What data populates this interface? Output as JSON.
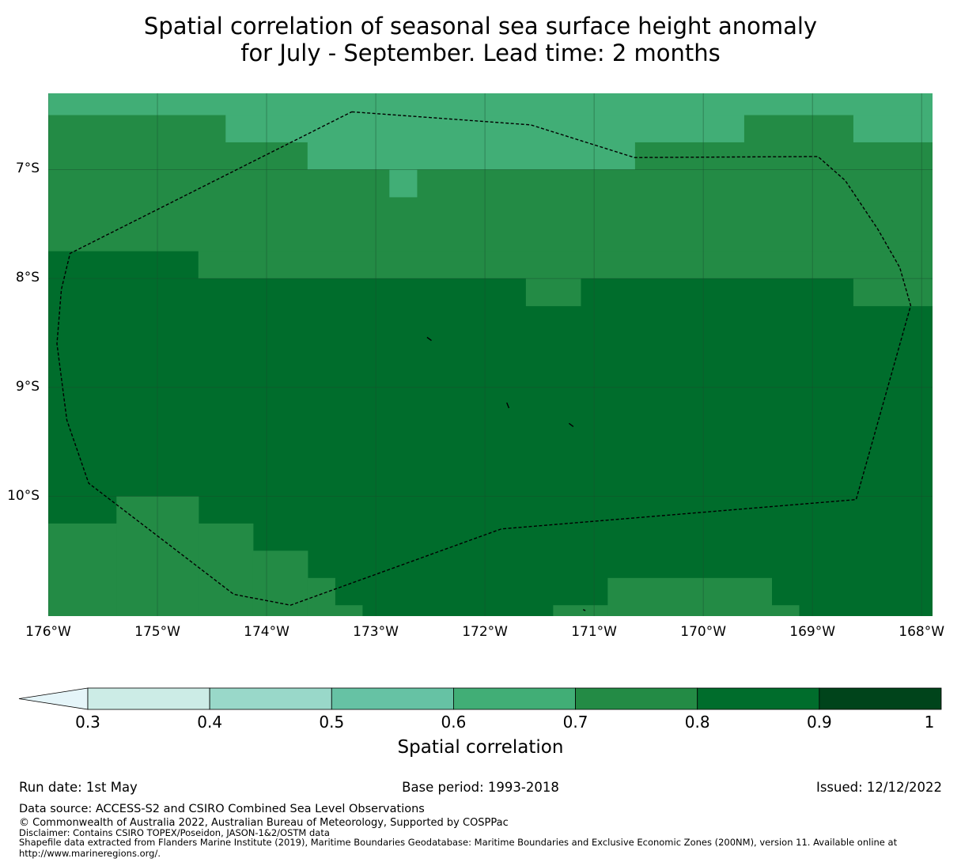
{
  "title": {
    "line1": "Spatial correlation of seasonal sea surface height anomaly",
    "line2": "for July - September. Lead time: 2 months"
  },
  "map": {
    "lon_range": [
      -176,
      -167.9
    ],
    "lat_range": [
      -11.1,
      -6.3
    ],
    "lat_ticks": [
      {
        "value": -7,
        "label": "7°S"
      },
      {
        "value": -8,
        "label": "8°S"
      },
      {
        "value": -9,
        "label": "9°S"
      },
      {
        "value": -10,
        "label": "10°S"
      }
    ],
    "lon_ticks": [
      {
        "value": -176,
        "label": "176°W"
      },
      {
        "value": -175,
        "label": "175°W"
      },
      {
        "value": -174,
        "label": "174°W"
      },
      {
        "value": -173,
        "label": "173°W"
      },
      {
        "value": -172,
        "label": "172°W"
      },
      {
        "value": -171,
        "label": "171°W"
      },
      {
        "value": -170,
        "label": "170°W"
      },
      {
        "value": -169,
        "label": "169°W"
      },
      {
        "value": -168,
        "label": "168°W"
      }
    ],
    "grid": true,
    "cells": [
      {
        "lon": [
          -176,
          -167.9
        ],
        "lat": [
          -6.3,
          -6.5
        ],
        "value": 0.65
      },
      {
        "lon": [
          -176,
          -174.375
        ],
        "lat": [
          -6.5,
          -6.75
        ],
        "value": 0.75
      },
      {
        "lon": [
          -174.375,
          -169.625
        ],
        "lat": [
          -6.5,
          -6.75
        ],
        "value": 0.65
      },
      {
        "lon": [
          -169.625,
          -168.625
        ],
        "lat": [
          -6.5,
          -6.75
        ],
        "value": 0.75
      },
      {
        "lon": [
          -168.625,
          -167.9
        ],
        "lat": [
          -6.5,
          -6.75
        ],
        "value": 0.65
      },
      {
        "lon": [
          -176,
          -173.625
        ],
        "lat": [
          -6.75,
          -7.0
        ],
        "value": 0.75
      },
      {
        "lon": [
          -173.625,
          -170.625
        ],
        "lat": [
          -6.75,
          -7.0
        ],
        "value": 0.65
      },
      {
        "lon": [
          -170.625,
          -167.9
        ],
        "lat": [
          -6.75,
          -7.0
        ],
        "value": 0.75
      },
      {
        "lon": [
          -176,
          -167.9
        ],
        "lat": [
          -7.0,
          -7.75
        ],
        "value": 0.75
      },
      {
        "lon": [
          -172.875,
          -172.625
        ],
        "lat": [
          -7.0,
          -7.25
        ],
        "value": 0.65
      },
      {
        "lon": [
          -176,
          -174.625
        ],
        "lat": [
          -7.75,
          -8.0
        ],
        "value": 0.85
      },
      {
        "lon": [
          -174.625,
          -167.9
        ],
        "lat": [
          -7.75,
          -8.0
        ],
        "value": 0.75
      },
      {
        "lon": [
          -176,
          -167.9
        ],
        "lat": [
          -8.0,
          -10.0
        ],
        "value": 0.85
      },
      {
        "lon": [
          -171.625,
          -171.125
        ],
        "lat": [
          -8.0,
          -8.25
        ],
        "value": 0.75
      },
      {
        "lon": [
          -168.625,
          -167.9
        ],
        "lat": [
          -8.0,
          -8.25
        ],
        "value": 0.75
      },
      {
        "lon": [
          -176,
          -167.9
        ],
        "lat": [
          -10.0,
          -11.1
        ],
        "value": 0.85
      },
      {
        "lon": [
          -176,
          -175.375
        ],
        "lat": [
          -10.25,
          -11.1
        ],
        "value": 0.75
      },
      {
        "lon": [
          -175.375,
          -174.625
        ],
        "lat": [
          -10.0,
          -11.1
        ],
        "value": 0.75
      },
      {
        "lon": [
          -174.625,
          -174.125
        ],
        "lat": [
          -10.25,
          -11.1
        ],
        "value": 0.75
      },
      {
        "lon": [
          -174.125,
          -173.625
        ],
        "lat": [
          -10.5,
          -11.1
        ],
        "value": 0.75
      },
      {
        "lon": [
          -173.625,
          -173.375
        ],
        "lat": [
          -10.75,
          -11.1
        ],
        "value": 0.75
      },
      {
        "lon": [
          -173.375,
          -173.125
        ],
        "lat": [
          -11.0,
          -11.1
        ],
        "value": 0.75
      },
      {
        "lon": [
          -171.375,
          -170.875
        ],
        "lat": [
          -11.0,
          -11.1
        ],
        "value": 0.75
      },
      {
        "lon": [
          -170.875,
          -169.375
        ],
        "lat": [
          -10.75,
          -11.1
        ],
        "value": 0.75
      },
      {
        "lon": [
          -169.375,
          -169.125
        ],
        "lat": [
          -11.0,
          -11.1
        ],
        "value": 0.75
      }
    ],
    "eez_boundary": [
      [
        -173.22,
        -6.47
      ],
      [
        -171.58,
        -6.59
      ],
      [
        -170.63,
        -6.89
      ],
      [
        -168.95,
        -6.88
      ],
      [
        -168.7,
        -7.1
      ],
      [
        -168.4,
        -7.55
      ],
      [
        -168.2,
        -7.9
      ],
      [
        -168.1,
        -8.25
      ],
      [
        -168.6,
        -10.03
      ],
      [
        -171.85,
        -10.3
      ],
      [
        -173.78,
        -11.0
      ],
      [
        -174.3,
        -10.9
      ],
      [
        -175.63,
        -9.88
      ],
      [
        -175.83,
        -9.3
      ],
      [
        -175.92,
        -8.6
      ],
      [
        -175.88,
        -8.1
      ],
      [
        -175.8,
        -7.77
      ],
      [
        -173.22,
        -6.47
      ]
    ],
    "islands": [
      [
        [
          -172.53,
          -8.54
        ],
        [
          -172.49,
          -8.57
        ]
      ],
      [
        [
          -171.8,
          -9.14
        ],
        [
          -171.78,
          -9.19
        ]
      ],
      [
        [
          -171.23,
          -9.33
        ],
        [
          -171.19,
          -9.36
        ]
      ],
      [
        [
          -171.1,
          -11.04
        ],
        [
          -171.08,
          -11.05
        ]
      ]
    ],
    "colors": {
      "grid": "#1a4d2e",
      "boundary": "#000000"
    }
  },
  "colorbar": {
    "label": "Spatial correlation",
    "ticks": [
      "0.3",
      "0.4",
      "0.5",
      "0.6",
      "0.7",
      "0.8",
      "0.9",
      "1"
    ],
    "under_color": "#e5f5f9",
    "colors": [
      "#ccece6",
      "#99d8c9",
      "#66c2a4",
      "#41ae76",
      "#238b45",
      "#006d2c",
      "#00441b"
    ],
    "bounds": [
      0.3,
      0.4,
      0.5,
      0.6,
      0.7,
      0.8,
      0.9,
      1.0
    ]
  },
  "meta": {
    "run_date": "Run date: 1st May",
    "base_period": "Base period: 1993-2018",
    "issued": "Issued: 12/12/2022"
  },
  "footer": {
    "data_source": "Data source: ACCESS-S2 and CSIRO Combined Sea Level Observations",
    "copyright": "© Commonwealth of Australia 2022, Australian Bureau of Meteorology, Supported by COSPPac",
    "disclaimer": "Disclaimer: Contains CSIRO TOPEX/Poseidon, JASON-1&2/OSTM data",
    "shapefile": "Shapefile data extracted from Flanders Marine Institute (2019), Maritime Boundaries Geodatabase: Maritime Boundaries and Exclusive Economic Zones (200NM), version 11. Available online at",
    "url": "http://www.marineregions.org/."
  }
}
